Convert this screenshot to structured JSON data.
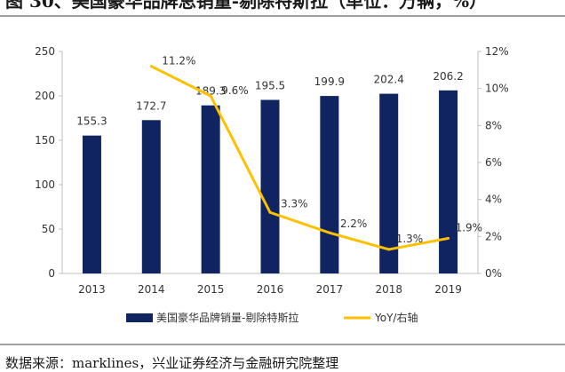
{
  "figure": {
    "title": "图 30、美国豪华品牌总销量-剔除特斯拉（单位：万辆，%）",
    "source": "数据来源：marklines，兴业证券经济与金融研究院整理"
  },
  "colors": {
    "bar": "#0f2460",
    "line": "#ffc000",
    "axis": "#bfbfbf",
    "text": "#333333"
  },
  "chart_data": {
    "type": "bar",
    "categories": [
      "2013",
      "2014",
      "2015",
      "2016",
      "2017",
      "2018",
      "2019"
    ],
    "series": [
      {
        "name": "美国豪华品牌销量-剔除特斯拉",
        "type": "bar",
        "axis": "left",
        "values": [
          155.3,
          172.7,
          189.3,
          195.5,
          199.9,
          202.4,
          206.2
        ],
        "labels": [
          "155.3",
          "172.7",
          "189.3",
          "195.5",
          "199.9",
          "202.4",
          "206.2"
        ]
      },
      {
        "name": "YoY/右轴",
        "type": "line",
        "axis": "right",
        "values": [
          null,
          11.2,
          9.6,
          3.3,
          2.2,
          1.3,
          1.9
        ],
        "labels": [
          "",
          "11.2%",
          "9.6%",
          "3.3%",
          "2.2%",
          "1.3%",
          "1.9%"
        ]
      }
    ],
    "y_left": {
      "lim": [
        0,
        250
      ],
      "ticks": [
        "0",
        "50",
        "100",
        "150",
        "200",
        "250"
      ]
    },
    "y_right": {
      "lim": [
        0,
        12
      ],
      "ticks": [
        "0%",
        "2%",
        "4%",
        "6%",
        "8%",
        "10%",
        "12%"
      ]
    },
    "grid": false,
    "legend": "bottom"
  }
}
